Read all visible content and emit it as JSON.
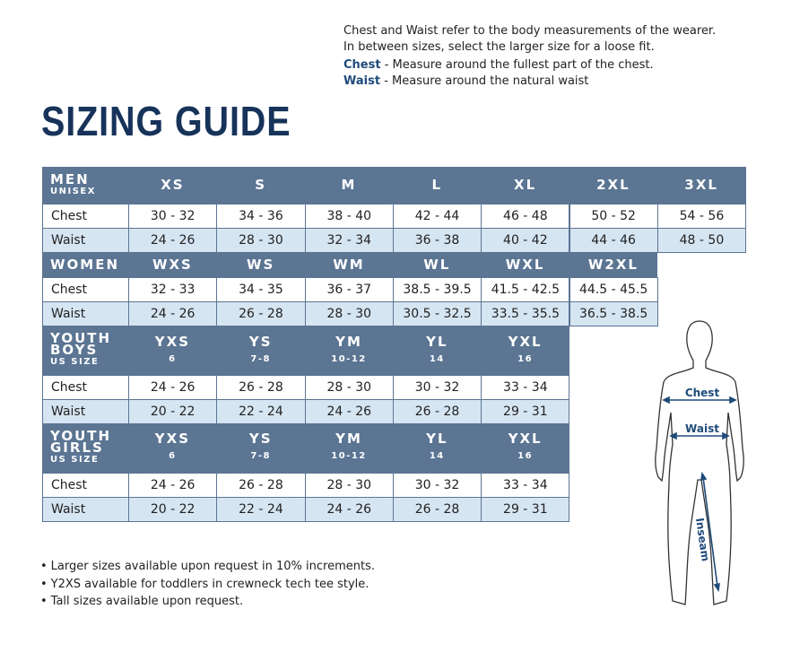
{
  "intro": [
    "Chest and Waist refer to the body measurements of the wearer.",
    "In between sizes, select the larger size for a loose fit."
  ],
  "definitions": [
    {
      "term": "Chest",
      "text": "- Measure around the fullest part of the chest."
    },
    {
      "term": "Waist",
      "text": "- Measure around the natural waist"
    }
  ],
  "title": "SIZING GUIDE",
  "sections": [
    {
      "label": [
        "MEN"
      ],
      "sublabel": "UNISEX",
      "sizes": [
        {
          "name": "XS"
        },
        {
          "name": "S"
        },
        {
          "name": "M"
        },
        {
          "name": "L"
        },
        {
          "name": "XL"
        },
        {
          "name": "2XL"
        },
        {
          "name": "3XL"
        }
      ],
      "rows": [
        {
          "label": "Chest",
          "values": [
            "30 - 32",
            "34 - 36",
            "38 - 40",
            "42 - 44",
            "46 - 48",
            "50 - 52",
            "54 - 56"
          ]
        },
        {
          "label": "Waist",
          "values": [
            "24 - 26",
            "28 - 30",
            "32 - 34",
            "36 - 38",
            "40 - 42",
            "44 - 46",
            "48 - 50"
          ]
        }
      ]
    },
    {
      "label": [
        "WOMEN"
      ],
      "sizes": [
        {
          "name": "WXS"
        },
        {
          "name": "WS"
        },
        {
          "name": "WM"
        },
        {
          "name": "WL"
        },
        {
          "name": "WXL"
        },
        {
          "name": "W2XL"
        }
      ],
      "rows": [
        {
          "label": "Chest",
          "values": [
            "32 - 33",
            "34 - 35",
            "36 - 37",
            "38.5 - 39.5",
            "41.5 - 42.5",
            "44.5 - 45.5"
          ]
        },
        {
          "label": "Waist",
          "values": [
            "24 - 26",
            "26 - 28",
            "28 - 30",
            "30.5 - 32.5",
            "33.5 - 35.5",
            "36.5 - 38.5"
          ]
        }
      ]
    },
    {
      "label": [
        "YOUTH",
        "BOYS"
      ],
      "sublabel": "US SIZE",
      "sizes": [
        {
          "name": "YXS",
          "sub": "6"
        },
        {
          "name": "YS",
          "sub": "7-8"
        },
        {
          "name": "YM",
          "sub": "10-12"
        },
        {
          "name": "YL",
          "sub": "14"
        },
        {
          "name": "YXL",
          "sub": "16"
        }
      ],
      "rows": [
        {
          "label": "Chest",
          "values": [
            "24 - 26",
            "26 - 28",
            "28 - 30",
            "30 - 32",
            "33 - 34"
          ]
        },
        {
          "label": "Waist",
          "values": [
            "20 - 22",
            "22 - 24",
            "24 - 26",
            "26 - 28",
            "29 - 31"
          ]
        }
      ]
    },
    {
      "label": [
        "YOUTH",
        "GIRLS"
      ],
      "sublabel": "US SIZE",
      "sizes": [
        {
          "name": "YXS",
          "sub": "6"
        },
        {
          "name": "YS",
          "sub": "7-8"
        },
        {
          "name": "YM",
          "sub": "10-12"
        },
        {
          "name": "YL",
          "sub": "14"
        },
        {
          "name": "YXL",
          "sub": "16"
        }
      ],
      "rows": [
        {
          "label": "Chest",
          "values": [
            "24 - 26",
            "26 - 28",
            "28 - 30",
            "30 - 32",
            "33 - 34"
          ]
        },
        {
          "label": "Waist",
          "values": [
            "20 - 22",
            "22 - 24",
            "24 - 26",
            "26 - 28",
            "29 - 31"
          ]
        }
      ]
    }
  ],
  "notes": [
    "Larger sizes available upon request in 10% increments.",
    "Y2XS available for toddlers in crewneck tech tee style.",
    "Tall sizes available upon request."
  ],
  "figure": {
    "chest": "Chest",
    "waist": "Waist",
    "inseam": "Inseam"
  }
}
